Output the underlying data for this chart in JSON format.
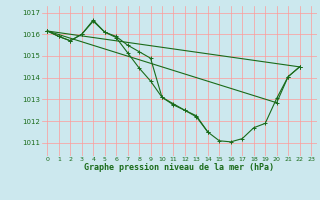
{
  "title": "Graphe pression niveau de la mer (hPa)",
  "bg_color": "#cce8ee",
  "grid_color": "#ff9999",
  "line_color": "#1a6b1a",
  "ylim": [
    1010.4,
    1017.3
  ],
  "xlim": [
    -0.5,
    23.5
  ],
  "yticks": [
    1011,
    1012,
    1013,
    1014,
    1015,
    1016,
    1017
  ],
  "xticks": [
    0,
    1,
    2,
    3,
    4,
    5,
    6,
    7,
    8,
    9,
    10,
    11,
    12,
    13,
    14,
    15,
    16,
    17,
    18,
    19,
    20,
    21,
    22,
    23
  ],
  "series": {
    "line1": {
      "x": [
        0,
        1,
        2,
        3,
        4,
        5,
        6,
        7,
        8,
        9,
        10,
        11,
        12,
        13,
        14,
        15,
        16,
        17,
        18,
        19,
        20,
        21,
        22
      ],
      "y": [
        1016.15,
        1015.9,
        1015.7,
        1016.0,
        1016.65,
        1016.1,
        1015.9,
        1015.5,
        1015.2,
        1014.9,
        1013.1,
        1012.8,
        1012.5,
        1012.25,
        1011.5,
        1011.1,
        1011.05,
        1011.2,
        1011.7,
        1011.9,
        1013.05,
        1014.05,
        1014.5
      ]
    },
    "line2": {
      "x": [
        0,
        1,
        2,
        3,
        4,
        5,
        6,
        7,
        8,
        9,
        10,
        11,
        12,
        13,
        14
      ],
      "y": [
        1016.15,
        1015.9,
        1015.7,
        1016.0,
        1016.6,
        1016.1,
        1015.85,
        1015.15,
        1014.45,
        1013.85,
        1013.1,
        1012.75,
        1012.5,
        1012.2,
        1011.5
      ]
    },
    "line3": {
      "x": [
        0,
        22
      ],
      "y": [
        1016.15,
        1014.5
      ]
    },
    "line4": {
      "x": [
        0,
        20,
        21,
        22
      ],
      "y": [
        1016.15,
        1012.85,
        1014.05,
        1014.5
      ]
    }
  }
}
